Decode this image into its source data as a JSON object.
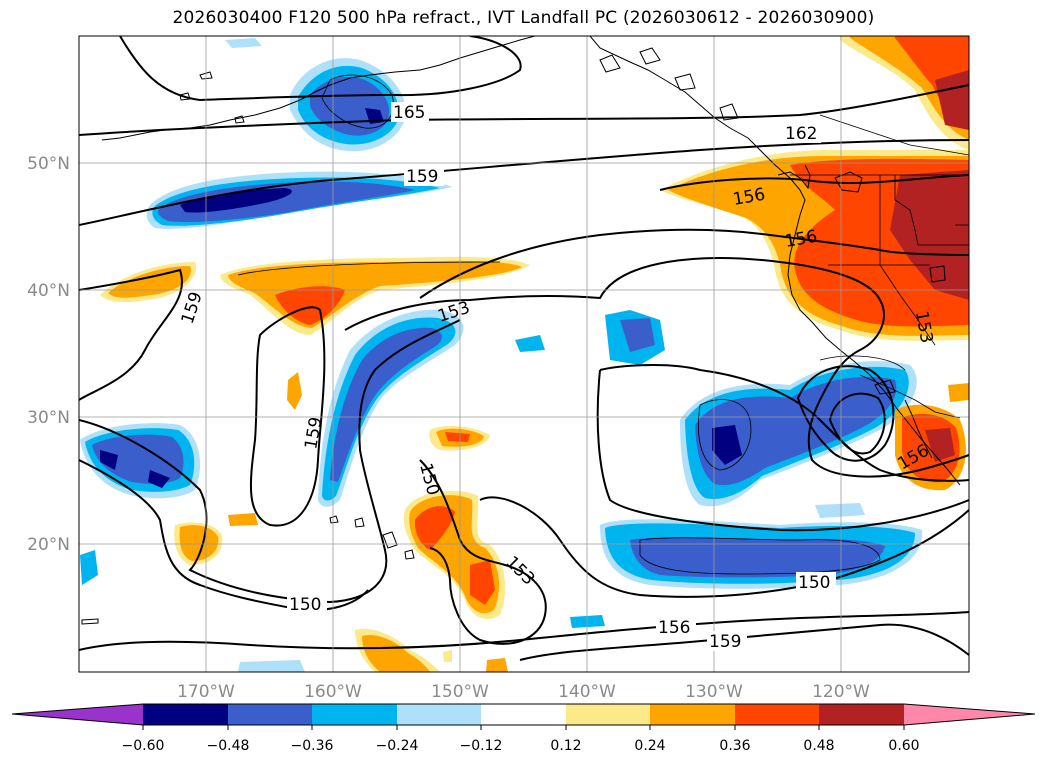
{
  "title": "2026030400 F120 500 hPa refract., IVT Landfall PC (2026030612 - 2026030900)",
  "map": {
    "lon_labels": [
      "170°W",
      "160°W",
      "150°W",
      "140°W",
      "130°W",
      "120°W"
    ],
    "lat_labels": [
      "50°N",
      "40°N",
      "30°N",
      "20°N"
    ],
    "contour_labels": [
      "165",
      "162",
      "159",
      "159",
      "159",
      "156",
      "156",
      "153",
      "153",
      "153",
      "150",
      "150",
      "150",
      "156",
      "159",
      "156"
    ]
  },
  "colorbar": {
    "ticks": [
      "−0.60",
      "−0.48",
      "−0.36",
      "−0.24",
      "−0.12",
      "0.12",
      "0.24",
      "0.36",
      "0.48",
      "0.60"
    ],
    "colors": [
      "#9933cc",
      "#000080",
      "#3a5fcd",
      "#00b4f0",
      "#aee0fa",
      "#ffffff",
      "#fce98a",
      "#ffa500",
      "#ff4500",
      "#b22222",
      "#ff88aa"
    ]
  },
  "chart_data": {
    "type": "contour-map",
    "title": "2026030400 F120 500 hPa refract., IVT Landfall PC (2026030612 - 2026030900)",
    "xlim": [
      -180,
      -110
    ],
    "ylim": [
      10,
      60
    ],
    "x_ticks": [
      -170,
      -160,
      -150,
      -140,
      -130,
      -120
    ],
    "y_ticks": [
      20,
      30,
      40,
      50
    ],
    "grid": true,
    "contour_levels_labeled": [
      150,
      153,
      156,
      159,
      162,
      165
    ],
    "colorbar_levels": [
      -0.6,
      -0.48,
      -0.36,
      -0.24,
      -0.12,
      0.12,
      0.24,
      0.36,
      0.48,
      0.6
    ],
    "colorbar_extend": "both"
  }
}
